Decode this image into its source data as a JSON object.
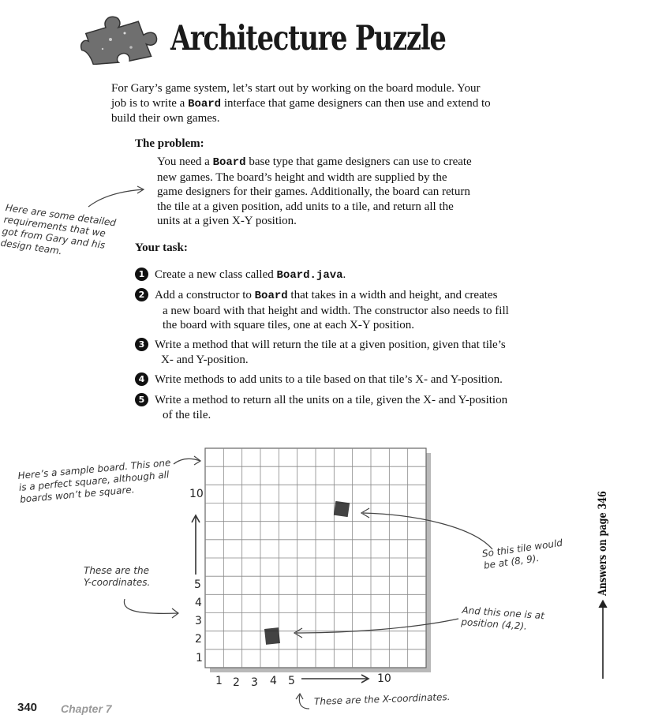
{
  "header": {
    "title": "Architecture Puzzle",
    "icon": "puzzle-piece-icon"
  },
  "intro": {
    "lines": [
      "For Gary’s game system, let’s start out by working on the board module. Your",
      "job is to write a ",
      "Board",
      " interface that game designers can then use and extend to",
      "build their own games."
    ]
  },
  "problem": {
    "heading": "The problem:",
    "line1_a": "You need a ",
    "line1_code": "Board",
    "line1_b": " base type that game designers can use to create",
    "line2": "new games. The board’s height and width are supplied by the",
    "line3": "game designers for their games. Additionally, the board can return",
    "line4": "the tile at a given position, add units to a tile, and return all the",
    "line5": "units at a given X-Y position."
  },
  "annotation_requirements": "Here are some detailed requirements that we got from Gary and his design team.",
  "task": {
    "heading": "Your task:",
    "items": [
      {
        "num": "1",
        "a": "Create a new class called ",
        "code": "Board.java",
        "b": "."
      },
      {
        "num": "2",
        "a": "Add a constructor to ",
        "code": "Board",
        "b": " that takes in a width and height, and creates",
        "c": "a new board with that height and width. The constructor also needs to fill",
        "d": "the board with square tiles, one at each X-Y position."
      },
      {
        "num": "3",
        "a": "Write a method that will return the tile at a given position, given that tile’s",
        "b": "X- and Y-position."
      },
      {
        "num": "4",
        "a": "Write methods to add units to a tile based on that tile’s X- and Y-position."
      },
      {
        "num": "5",
        "a": "Write a method to return all the units on a tile, given the X- and Y-position",
        "b": "of the tile."
      }
    ]
  },
  "diagram": {
    "note_sample": [
      "Here’s a sample board. This one",
      "is a perfect square, although all",
      "boards won’t be square."
    ],
    "note_y": [
      "These are the",
      "Y-coordinates."
    ],
    "note_x": "These are the X-coordinates.",
    "note_tile89": [
      "So this tile would",
      "be at (8, 9)."
    ],
    "note_tile42": [
      "And this one is at",
      "position (4,2)."
    ],
    "y_labels": [
      "10",
      "5",
      "4",
      "3",
      "2",
      "1"
    ],
    "x_labels": [
      "1",
      "2",
      "3",
      "4",
      "5",
      "10"
    ]
  },
  "side_note": "Answers on page 346",
  "footer": {
    "page": "340",
    "chapter": "Chapter 7"
  }
}
